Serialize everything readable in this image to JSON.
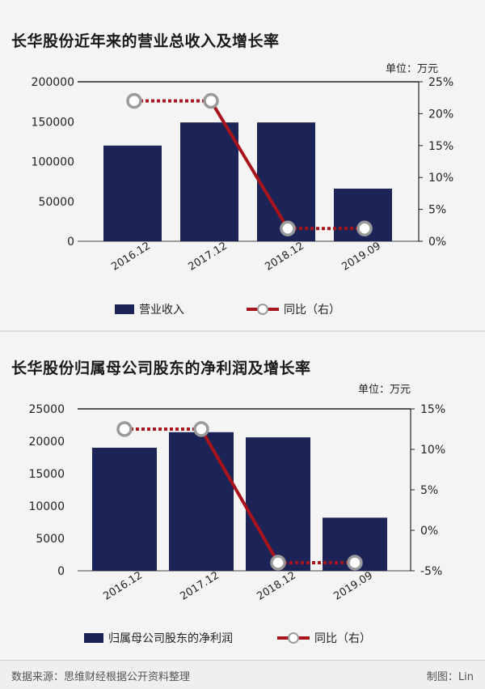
{
  "footer": {
    "source": "数据来源：思维财经根据公开资料整理",
    "credit": "制图：Lin"
  },
  "chart_data": [
    {
      "type": "bar",
      "title": "长华股份近年来的营业总收入及增长率",
      "unit": "单位：万元",
      "categories": [
        "2016.12",
        "2017.12",
        "2018.12",
        "2019.09"
      ],
      "ylim": [
        0,
        200000
      ],
      "yticks": [
        "0",
        "50000",
        "100000",
        "150000",
        "200000"
      ],
      "y2lim": [
        0,
        25
      ],
      "y2ticks": [
        "0%",
        "5%",
        "10%",
        "15%",
        "20%",
        "25%"
      ],
      "series": [
        {
          "name": "营业收入",
          "kind": "bar",
          "axis": "left",
          "values": [
            120000,
            149000,
            149000,
            66000
          ]
        },
        {
          "name": "同比（右）",
          "kind": "line",
          "axis": "right",
          "values": [
            22,
            22,
            2,
            2
          ]
        }
      ],
      "colors": {
        "bar": "#1c2357",
        "line": "#a8141b",
        "marker": "#9a9a9a"
      }
    },
    {
      "type": "bar",
      "title": "长华股份归属母公司股东的净利润及增长率",
      "unit": "单位：万元",
      "categories": [
        "2016.12",
        "2017.12",
        "2018.12",
        "2019.09"
      ],
      "ylim": [
        0,
        25000
      ],
      "yticks": [
        "0",
        "5000",
        "10000",
        "15000",
        "20000",
        "25000"
      ],
      "y2lim": [
        -5,
        15
      ],
      "y2ticks": [
        "-5%",
        "0%",
        "5%",
        "10%",
        "15%"
      ],
      "series": [
        {
          "name": "归属母公司股东的净利润",
          "kind": "bar",
          "axis": "left",
          "values": [
            19000,
            21400,
            20600,
            8200
          ]
        },
        {
          "name": "同比（右）",
          "kind": "line",
          "axis": "right",
          "values": [
            12.5,
            12.5,
            -4,
            -4
          ]
        }
      ],
      "colors": {
        "bar": "#1c2357",
        "line": "#a8141b",
        "marker": "#9a9a9a"
      }
    }
  ]
}
